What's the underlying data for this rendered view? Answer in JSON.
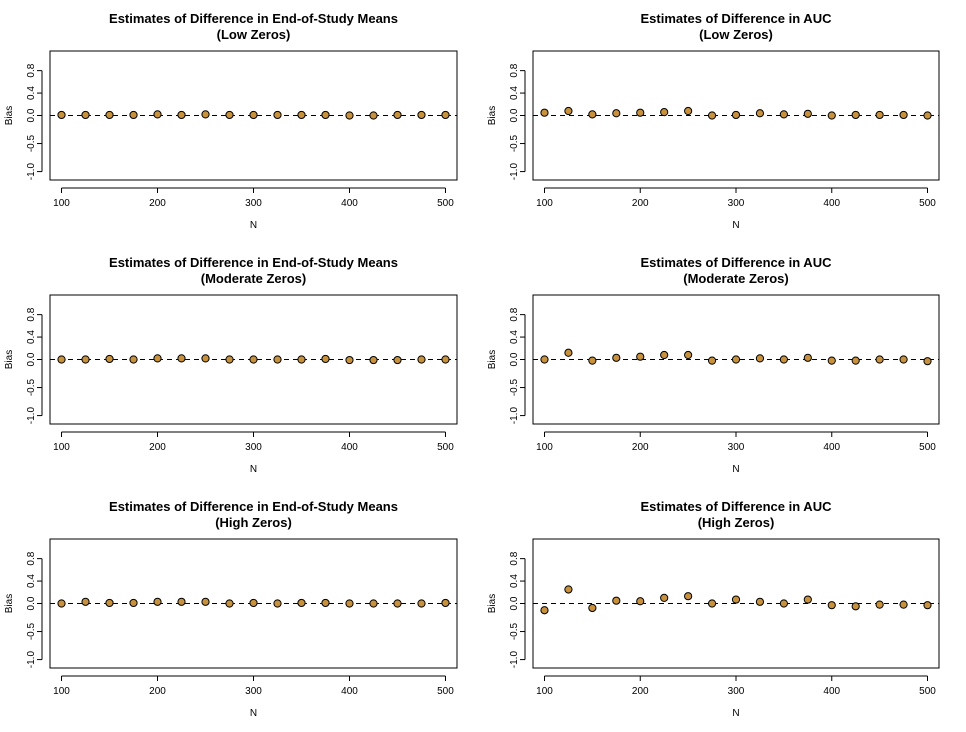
{
  "colors": {
    "point_fill": "#c8913c",
    "point_stroke": "#000000",
    "frame": "#000000",
    "reference_line": "#000000"
  },
  "chart_data": [
    {
      "type": "scatter",
      "title": "Estimates of Difference in End-of-Study Means",
      "subtitle": "(Low Zeros)",
      "xlabel": "N",
      "ylabel": "Bias",
      "xlim": [
        88,
        512
      ],
      "ylim": [
        -1.15,
        1.15
      ],
      "xticks": [
        100,
        200,
        300,
        400,
        500
      ],
      "yticks": [
        -1.0,
        -0.5,
        0.0,
        0.4,
        0.8
      ],
      "ytick_labels": [
        "-1.0",
        "-0.5",
        "0.0",
        "0.4",
        "0.8"
      ],
      "reference_line_y": 0,
      "reference_line_style": "dashed",
      "grid": false,
      "x": [
        100,
        125,
        150,
        175,
        200,
        225,
        250,
        275,
        300,
        325,
        350,
        375,
        400,
        425,
        450,
        475,
        500
      ],
      "y": [
        0.01,
        0.01,
        0.01,
        0.01,
        0.02,
        0.01,
        0.02,
        0.01,
        0.01,
        0.01,
        0.01,
        0.01,
        0.0,
        0.0,
        0.01,
        0.01,
        0.01
      ]
    },
    {
      "type": "scatter",
      "title": "Estimates of Difference in AUC",
      "subtitle": "(Low Zeros)",
      "xlabel": "N",
      "ylabel": "Bias",
      "xlim": [
        88,
        512
      ],
      "ylim": [
        -1.15,
        1.15
      ],
      "xticks": [
        100,
        200,
        300,
        400,
        500
      ],
      "yticks": [
        -1.0,
        -0.5,
        0.0,
        0.4,
        0.8
      ],
      "ytick_labels": [
        "-1.0",
        "-0.5",
        "0.0",
        "0.4",
        "0.8"
      ],
      "reference_line_y": 0,
      "reference_line_style": "dashed",
      "grid": false,
      "x": [
        100,
        125,
        150,
        175,
        200,
        225,
        250,
        275,
        300,
        325,
        350,
        375,
        400,
        425,
        450,
        475,
        500
      ],
      "y": [
        0.05,
        0.08,
        0.02,
        0.04,
        0.05,
        0.06,
        0.08,
        0.0,
        0.01,
        0.04,
        0.02,
        0.03,
        0.0,
        0.01,
        0.01,
        0.01,
        0.0
      ]
    },
    {
      "type": "scatter",
      "title": "Estimates of Difference in End-of-Study Means",
      "subtitle": "(Moderate Zeros)",
      "xlabel": "N",
      "ylabel": "Bias",
      "xlim": [
        88,
        512
      ],
      "ylim": [
        -1.15,
        1.15
      ],
      "xticks": [
        100,
        200,
        300,
        400,
        500
      ],
      "yticks": [
        -1.0,
        -0.5,
        0.0,
        0.4,
        0.8
      ],
      "ytick_labels": [
        "-1.0",
        "-0.5",
        "0.0",
        "0.4",
        "0.8"
      ],
      "reference_line_y": 0,
      "reference_line_style": "dashed",
      "grid": false,
      "x": [
        100,
        125,
        150,
        175,
        200,
        225,
        250,
        275,
        300,
        325,
        350,
        375,
        400,
        425,
        450,
        475,
        500
      ],
      "y": [
        0.0,
        0.0,
        0.01,
        0.0,
        0.02,
        0.02,
        0.02,
        0.0,
        0.0,
        0.0,
        0.0,
        0.01,
        -0.01,
        -0.01,
        -0.01,
        0.0,
        0.0
      ]
    },
    {
      "type": "scatter",
      "title": "Estimates of Difference in AUC",
      "subtitle": "(Moderate Zeros)",
      "xlabel": "N",
      "ylabel": "Bias",
      "xlim": [
        88,
        512
      ],
      "ylim": [
        -1.15,
        1.15
      ],
      "xticks": [
        100,
        200,
        300,
        400,
        500
      ],
      "yticks": [
        -1.0,
        -0.5,
        0.0,
        0.4,
        0.8
      ],
      "ytick_labels": [
        "-1.0",
        "-0.5",
        "0.0",
        "0.4",
        "0.8"
      ],
      "reference_line_y": 0,
      "reference_line_style": "dashed",
      "grid": false,
      "x": [
        100,
        125,
        150,
        175,
        200,
        225,
        250,
        275,
        300,
        325,
        350,
        375,
        400,
        425,
        450,
        475,
        500
      ],
      "y": [
        0.0,
        0.12,
        -0.02,
        0.03,
        0.05,
        0.08,
        0.08,
        -0.02,
        0.0,
        0.02,
        0.0,
        0.03,
        -0.02,
        -0.02,
        0.0,
        0.0,
        -0.03
      ]
    },
    {
      "type": "scatter",
      "title": "Estimates of Difference in End-of-Study Means",
      "subtitle": "(High Zeros)",
      "xlabel": "N",
      "ylabel": "Bias",
      "xlim": [
        88,
        512
      ],
      "ylim": [
        -1.15,
        1.15
      ],
      "xticks": [
        100,
        200,
        300,
        400,
        500
      ],
      "yticks": [
        -1.0,
        -0.5,
        0.0,
        0.4,
        0.8
      ],
      "ytick_labels": [
        "-1.0",
        "-0.5",
        "0.0",
        "0.4",
        "0.8"
      ],
      "reference_line_y": 0,
      "reference_line_style": "dashed",
      "grid": false,
      "x": [
        100,
        125,
        150,
        175,
        200,
        225,
        250,
        275,
        300,
        325,
        350,
        375,
        400,
        425,
        450,
        475,
        500
      ],
      "y": [
        0.0,
        0.03,
        0.01,
        0.01,
        0.03,
        0.03,
        0.03,
        0.0,
        0.01,
        0.0,
        0.01,
        0.01,
        0.0,
        0.0,
        0.0,
        0.0,
        0.01
      ]
    },
    {
      "type": "scatter",
      "title": "Estimates of Difference in AUC",
      "subtitle": "(High Zeros)",
      "xlabel": "N",
      "ylabel": "Bias",
      "xlim": [
        88,
        512
      ],
      "ylim": [
        -1.15,
        1.15
      ],
      "xticks": [
        100,
        200,
        300,
        400,
        500
      ],
      "yticks": [
        -1.0,
        -0.5,
        0.0,
        0.4,
        0.8
      ],
      "ytick_labels": [
        "-1.0",
        "-0.5",
        "0.0",
        "0.4",
        "0.8"
      ],
      "reference_line_y": 0,
      "reference_line_style": "dashed",
      "grid": false,
      "x": [
        100,
        125,
        150,
        175,
        200,
        225,
        250,
        275,
        300,
        325,
        350,
        375,
        400,
        425,
        450,
        475,
        500
      ],
      "y": [
        -0.12,
        0.25,
        -0.08,
        0.05,
        0.04,
        0.1,
        0.13,
        0.0,
        0.07,
        0.03,
        0.0,
        0.07,
        -0.03,
        -0.05,
        -0.02,
        -0.02,
        -0.03
      ]
    }
  ]
}
